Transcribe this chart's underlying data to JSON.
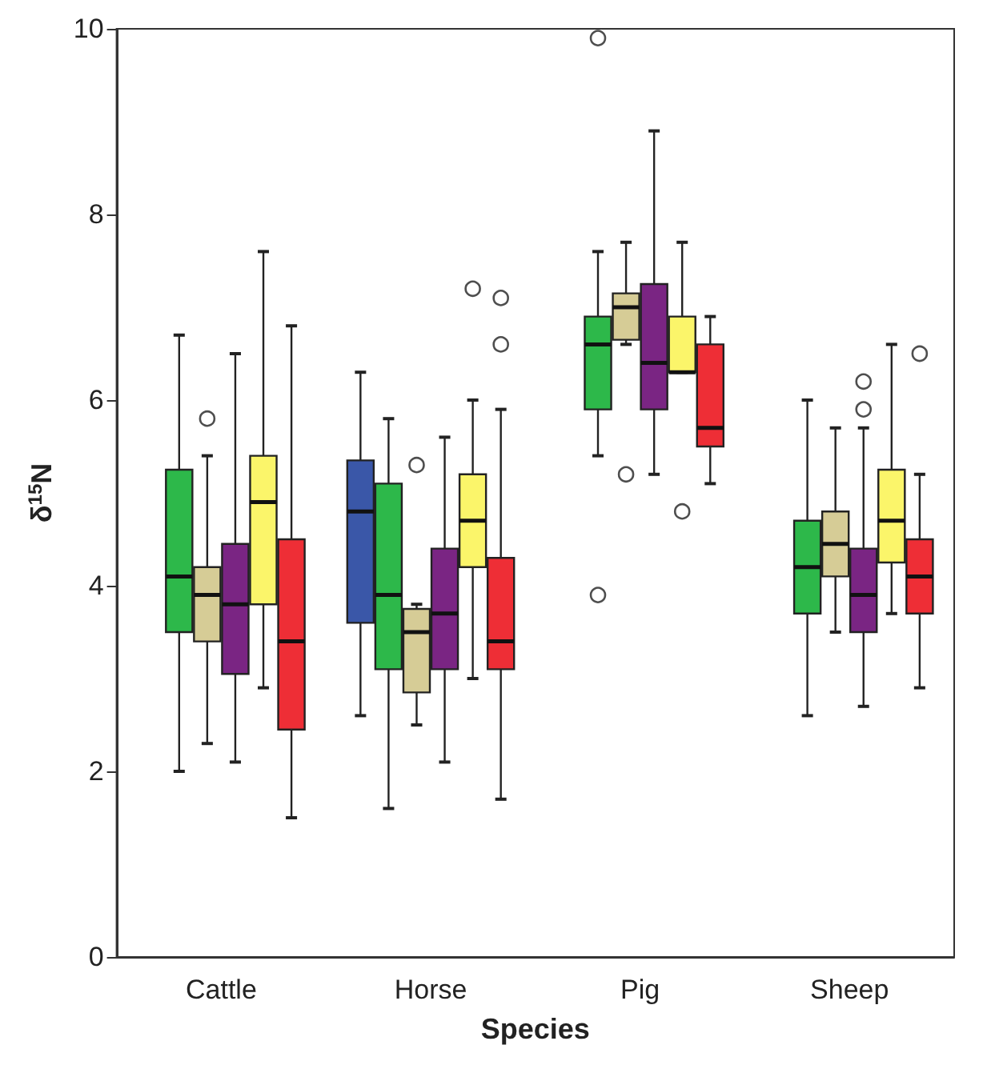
{
  "chart_data": {
    "type": "box",
    "xlabel": "Species",
    "ylabel": "δ$^{15}$N",
    "categories": [
      "Cattle",
      "Horse",
      "Pig",
      "Sheep"
    ],
    "ylim": [
      0,
      10
    ],
    "yticks": [
      0,
      2,
      4,
      6,
      8,
      10
    ],
    "series": [
      {
        "color": "#3a57a8",
        "boxes": [
          null,
          {
            "low": 2.6,
            "q1": 3.6,
            "median": 4.8,
            "q3": 5.35,
            "high": 6.3
          },
          null,
          null
        ]
      },
      {
        "color": "#2db84a",
        "boxes": [
          {
            "low": 2.0,
            "q1": 3.5,
            "median": 4.1,
            "q3": 5.25,
            "high": 6.7
          },
          {
            "low": 1.6,
            "q1": 3.1,
            "median": 3.9,
            "q3": 5.1,
            "high": 5.8
          },
          {
            "low": 5.4,
            "q1": 5.9,
            "median": 6.6,
            "q3": 6.9,
            "high": 7.6,
            "outliers": [
              9.9,
              3.9
            ]
          },
          {
            "low": 2.6,
            "q1": 3.7,
            "median": 4.2,
            "q3": 4.7,
            "high": 6.0
          }
        ]
      },
      {
        "color": "#d6cc96",
        "boxes": [
          {
            "low": 2.3,
            "q1": 3.4,
            "median": 3.9,
            "q3": 4.2,
            "high": 5.4,
            "outliers": [
              5.8
            ]
          },
          {
            "low": 2.5,
            "q1": 2.85,
            "median": 3.5,
            "q3": 3.75,
            "high": 3.8,
            "outliers": [
              5.3
            ]
          },
          {
            "low": 6.6,
            "q1": 6.65,
            "median": 7.0,
            "q3": 7.15,
            "high": 7.7,
            "outliers": [
              5.2
            ]
          },
          {
            "low": 3.5,
            "q1": 4.1,
            "median": 4.45,
            "q3": 4.8,
            "high": 5.7
          }
        ]
      },
      {
        "color": "#7a2583",
        "boxes": [
          {
            "low": 2.1,
            "q1": 3.05,
            "median": 3.8,
            "q3": 4.45,
            "high": 6.5
          },
          {
            "low": 2.1,
            "q1": 3.1,
            "median": 3.7,
            "q3": 4.4,
            "high": 5.6
          },
          {
            "low": 5.2,
            "q1": 5.9,
            "median": 6.4,
            "q3": 7.25,
            "high": 8.9
          },
          {
            "low": 2.7,
            "q1": 3.5,
            "median": 3.9,
            "q3": 4.4,
            "high": 5.7,
            "outliers": [
              6.2,
              5.9
            ]
          }
        ]
      },
      {
        "color": "#fbf56a",
        "boxes": [
          {
            "low": 2.9,
            "q1": 3.8,
            "median": 4.9,
            "q3": 5.4,
            "high": 7.6
          },
          {
            "low": 3.0,
            "q1": 4.2,
            "median": 4.7,
            "q3": 5.2,
            "high": 6.0,
            "outliers": [
              7.2
            ]
          },
          {
            "low": 6.3,
            "q1": 6.3,
            "median": 6.3,
            "q3": 6.9,
            "high": 7.7,
            "outliers": [
              4.8
            ]
          },
          {
            "low": 3.7,
            "q1": 4.25,
            "median": 4.7,
            "q3": 5.25,
            "high": 6.6
          }
        ]
      },
      {
        "color": "#ee2e36",
        "boxes": [
          {
            "low": 1.5,
            "q1": 2.45,
            "median": 3.4,
            "q3": 4.5,
            "high": 6.8
          },
          {
            "low": 1.7,
            "q1": 3.1,
            "median": 3.4,
            "q3": 4.3,
            "high": 5.9,
            "outliers": [
              7.1,
              6.6
            ]
          },
          {
            "low": 5.1,
            "q1": 5.5,
            "median": 5.7,
            "q3": 6.6,
            "high": 6.9
          },
          {
            "low": 2.9,
            "q1": 3.7,
            "median": 4.1,
            "q3": 4.5,
            "high": 5.2,
            "outliers": [
              6.5
            ]
          }
        ]
      }
    ]
  }
}
